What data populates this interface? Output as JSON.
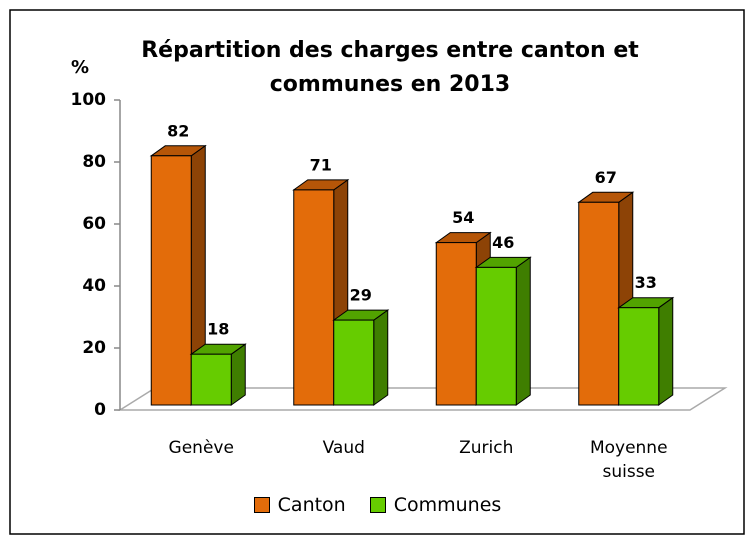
{
  "chart_data": {
    "type": "bar3d",
    "title": "Répartition des charges entre canton et communes en 2013",
    "y_label": "%",
    "categories": [
      "Genève",
      "Vaud",
      "Zurich",
      "Moyenne suisse"
    ],
    "series": [
      {
        "name": "Canton",
        "color": "#e36c0a",
        "values": [
          82,
          71,
          54,
          67
        ]
      },
      {
        "name": "Communes",
        "color": "#66cc00",
        "values": [
          18,
          29,
          46,
          33
        ]
      }
    ],
    "ylim": [
      0,
      100
    ],
    "yticks": [
      0,
      20,
      40,
      60,
      80,
      100
    ],
    "legend": "bottom"
  }
}
